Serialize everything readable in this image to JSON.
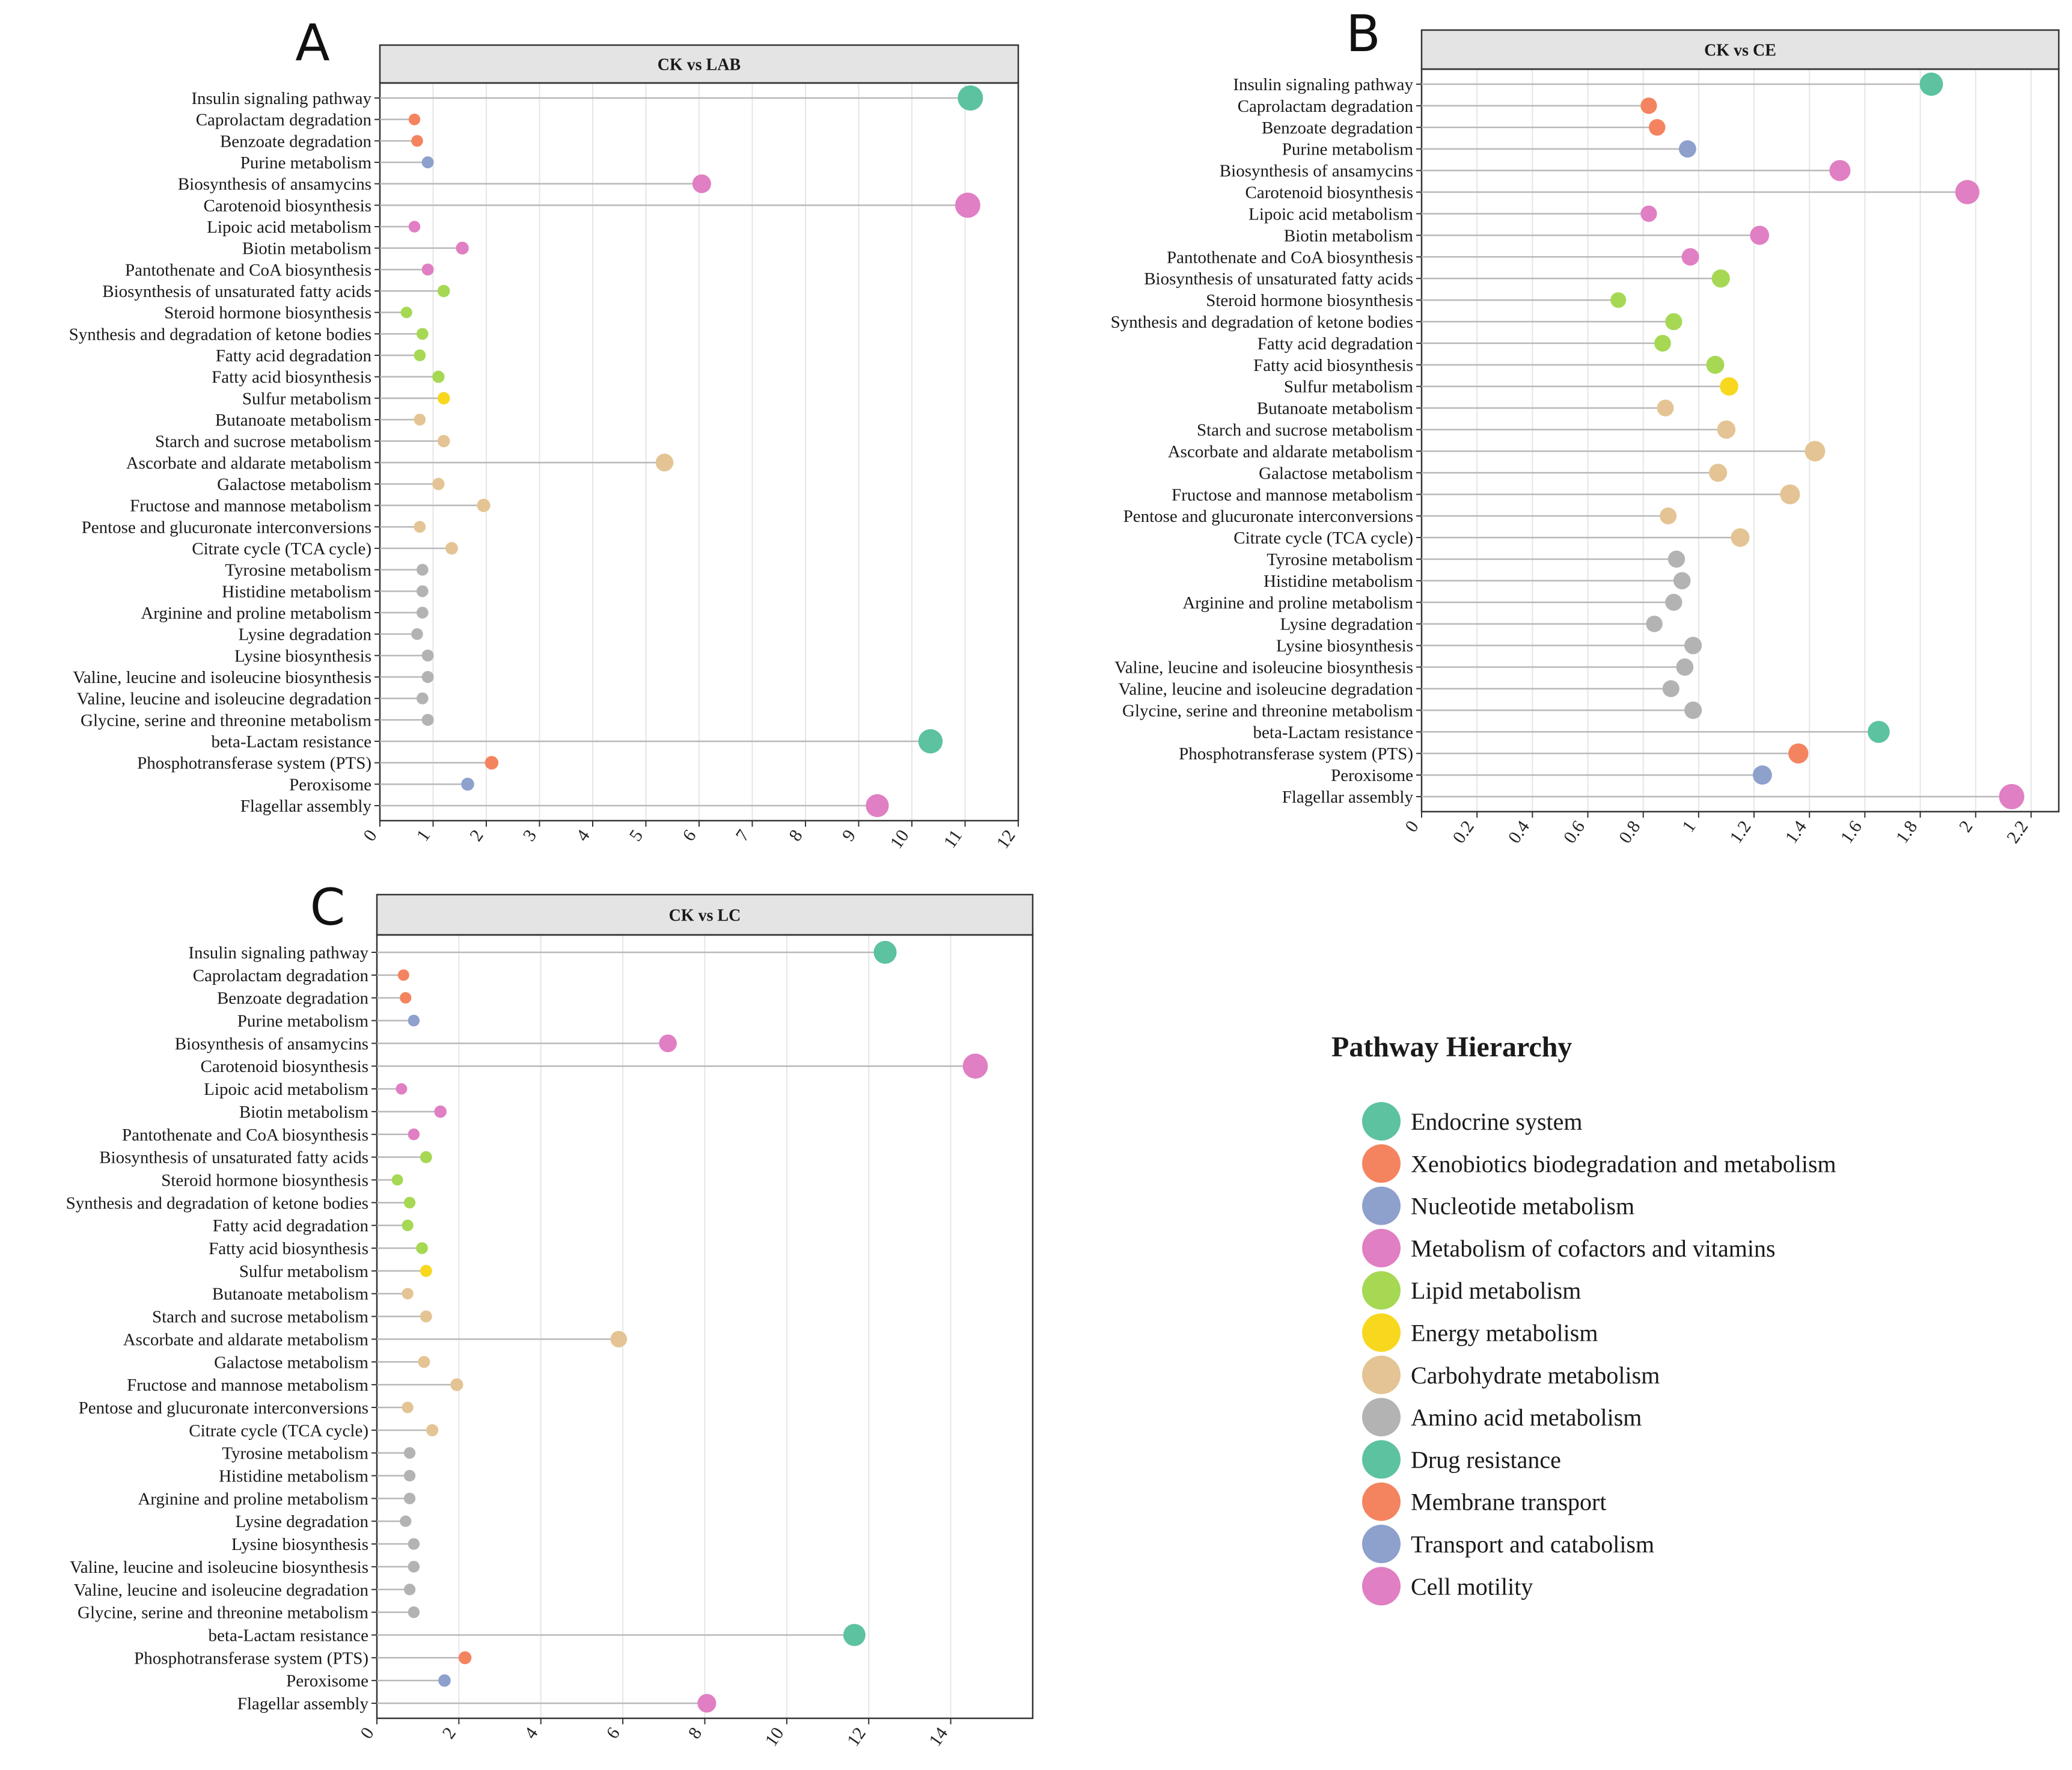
{
  "categories": {
    "Endocrine system": "#5cc2a0",
    "Xenobiotics biodegradation and metabolism": "#f4845f",
    "Nucleotide metabolism": "#8ea0cc",
    "Metabolism of cofactors and vitamins": "#e07fc3",
    "Lipid metabolism": "#a6d854",
    "Energy metabolism": "#f7d81e",
    "Carbohydrate metabolism": "#e4c494",
    "Amino acid metabolism": "#b3b3b3",
    "Drug resistance": "#5cc2a0",
    "Membrane transport": "#f4845f",
    "Transport and catabolism": "#8ea0cc",
    "Cell motility": "#e07fc3"
  },
  "pathway_categories": [
    "Endocrine system",
    "Xenobiotics biodegradation and metabolism",
    "Xenobiotics biodegradation and metabolism",
    "Nucleotide metabolism",
    "Metabolism of cofactors and vitamins",
    "Metabolism of cofactors and vitamins",
    "Metabolism of cofactors and vitamins",
    "Metabolism of cofactors and vitamins",
    "Metabolism of cofactors and vitamins",
    "Lipid metabolism",
    "Lipid metabolism",
    "Lipid metabolism",
    "Lipid metabolism",
    "Lipid metabolism",
    "Energy metabolism",
    "Carbohydrate metabolism",
    "Carbohydrate metabolism",
    "Carbohydrate metabolism",
    "Carbohydrate metabolism",
    "Carbohydrate metabolism",
    "Carbohydrate metabolism",
    "Carbohydrate metabolism",
    "Amino acid metabolism",
    "Amino acid metabolism",
    "Amino acid metabolism",
    "Amino acid metabolism",
    "Amino acid metabolism",
    "Amino acid metabolism",
    "Amino acid metabolism",
    "Amino acid metabolism",
    "Drug resistance",
    "Membrane transport",
    "Transport and catabolism",
    "Cell motility"
  ],
  "legend": {
    "title": "Pathway Hierarchy",
    "items": [
      "Endocrine system",
      "Xenobiotics biodegradation and metabolism",
      "Nucleotide metabolism",
      "Metabolism of cofactors and vitamins",
      "Lipid metabolism",
      "Energy metabolism",
      "Carbohydrate metabolism",
      "Amino acid metabolism",
      "Drug resistance",
      "Membrane transport",
      "Transport and catabolism",
      "Cell motility"
    ]
  },
  "chart_data": [
    {
      "type": "lollipop",
      "panel": "A",
      "title": "CK vs LAB",
      "xlim": [
        0,
        12
      ],
      "xticks": [
        0,
        1,
        2,
        3,
        4,
        5,
        6,
        7,
        8,
        9,
        10,
        11,
        12
      ],
      "xtick_labels": [
        "0",
        "1",
        "2",
        "3",
        "4",
        "5",
        "6",
        "7",
        "8",
        "9",
        "10",
        "11",
        "12"
      ],
      "pathways": [
        "Insulin signaling pathway",
        "Caprolactam degradation",
        "Benzoate degradation",
        "Purine metabolism",
        "Biosynthesis of ansamycins",
        "Carotenoid biosynthesis",
        "Lipoic acid metabolism",
        "Biotin metabolism",
        "Pantothenate and CoA biosynthesis",
        "Biosynthesis of unsaturated fatty acids",
        "Steroid hormone biosynthesis",
        "Synthesis and degradation of ketone bodies",
        "Fatty acid degradation",
        "Fatty acid biosynthesis",
        "Sulfur metabolism",
        "Butanoate metabolism",
        "Starch and sucrose metabolism",
        "Ascorbate and aldarate metabolism",
        "Galactose metabolism",
        "Fructose and mannose metabolism",
        "Pentose and glucuronate interconversions",
        "Citrate cycle (TCA cycle)",
        "Tyrosine metabolism",
        "Histidine metabolism",
        "Arginine and proline metabolism",
        "Lysine degradation",
        "Lysine biosynthesis",
        "Valine, leucine and isoleucine biosynthesis",
        "Valine, leucine and isoleucine degradation",
        "Glycine, serine and threonine metabolism",
        "beta-Lactam resistance",
        "Phosphotransferase system (PTS)",
        "Peroxisome",
        "Flagellar assembly"
      ],
      "values": [
        11.1,
        0.65,
        0.7,
        0.9,
        6.05,
        11.05,
        0.65,
        1.55,
        0.9,
        1.2,
        0.5,
        0.8,
        0.75,
        1.1,
        1.2,
        0.75,
        1.2,
        5.35,
        1.1,
        1.95,
        0.75,
        1.35,
        0.8,
        0.8,
        0.8,
        0.7,
        0.9,
        0.9,
        0.8,
        0.9,
        10.35,
        2.1,
        1.65,
        9.35
      ]
    },
    {
      "type": "lollipop",
      "panel": "B",
      "title": "CK vs CE",
      "xlim": [
        0,
        2.3
      ],
      "xticks": [
        0,
        0.2,
        0.4,
        0.6,
        0.8,
        1,
        1.2,
        1.4,
        1.6,
        1.8,
        2,
        2.2
      ],
      "xtick_labels": [
        "0",
        "0.2",
        "0.4",
        "0.6",
        "0.8",
        "1",
        "1.2",
        "1.4",
        "1.6",
        "1.8",
        "2",
        "2.2"
      ],
      "pathways": [
        "Insulin signaling pathway",
        "Caprolactam degradation",
        "Benzoate degradation",
        "Purine metabolism",
        "Biosynthesis of ansamycins",
        "Carotenoid biosynthesis",
        "Lipoic acid metabolism",
        "Biotin metabolism",
        "Pantothenate and CoA biosynthesis",
        "Biosynthesis of unsaturated fatty acids",
        "Steroid hormone biosynthesis",
        "Synthesis and degradation of ketone bodies",
        "Fatty acid degradation",
        "Fatty acid biosynthesis",
        "Sulfur metabolism",
        "Butanoate metabolism",
        "Starch and sucrose metabolism",
        "Ascorbate and aldarate metabolism",
        "Galactose metabolism",
        "Fructose and mannose metabolism",
        "Pentose and glucuronate interconversions",
        "Citrate cycle (TCA cycle)",
        "Tyrosine metabolism",
        "Histidine metabolism",
        "Arginine and proline metabolism",
        "Lysine degradation",
        "Lysine biosynthesis",
        "Valine, leucine and isoleucine biosynthesis",
        "Valine, leucine and isoleucine degradation",
        "Glycine, serine and threonine metabolism",
        "beta-Lactam resistance",
        "Phosphotransferase system (PTS)",
        "Peroxisome",
        "Flagellar assembly"
      ],
      "values": [
        1.84,
        0.82,
        0.85,
        0.96,
        1.51,
        1.97,
        0.82,
        1.22,
        0.97,
        1.08,
        0.71,
        0.91,
        0.87,
        1.06,
        1.11,
        0.88,
        1.1,
        1.42,
        1.07,
        1.33,
        0.89,
        1.15,
        0.92,
        0.94,
        0.91,
        0.84,
        0.98,
        0.95,
        0.9,
        0.98,
        1.65,
        1.36,
        1.23,
        2.13
      ]
    },
    {
      "type": "lollipop",
      "panel": "C",
      "title": "CK vs LC",
      "xlim": [
        0,
        16
      ],
      "xticks": [
        0,
        2,
        4,
        6,
        8,
        10,
        12,
        14
      ],
      "xtick_labels": [
        "0",
        "2",
        "4",
        "6",
        "8",
        "10",
        "12",
        "14"
      ],
      "pathways": [
        "Insulin signaling pathway",
        "Caprolactam degradation",
        "Benzoate degradation",
        "Purine metabolism",
        "Biosynthesis of ansamycins",
        "Carotenoid biosynthesis",
        "Lipoic acid metabolism",
        "Biotin metabolism",
        "Pantothenate and CoA biosynthesis",
        "Biosynthesis of unsaturated fatty acids",
        "Steroid hormone biosynthesis",
        "Synthesis and degradation of ketone bodies",
        "Fatty acid degradation",
        "Fatty acid biosynthesis",
        "Sulfur metabolism",
        "Butanoate metabolism",
        "Starch and sucrose metabolism",
        "Ascorbate and aldarate metabolism",
        "Galactose metabolism",
        "Fructose and mannose metabolism",
        "Pentose and glucuronate interconversions",
        "Citrate cycle (TCA cycle)",
        "Tyrosine metabolism",
        "Histidine metabolism",
        "Arginine and proline metabolism",
        "Lysine degradation",
        "Lysine biosynthesis",
        "Valine, leucine and isoleucine biosynthesis",
        "Valine, leucine and isoleucine degradation",
        "Glycine, serine and threonine metabolism",
        "beta-Lactam resistance",
        "Phosphotransferase system (PTS)",
        "Peroxisome",
        "Flagellar assembly"
      ],
      "values": [
        12.4,
        0.65,
        0.7,
        0.9,
        7.1,
        14.6,
        0.6,
        1.55,
        0.9,
        1.2,
        0.5,
        0.8,
        0.75,
        1.1,
        1.2,
        0.75,
        1.2,
        5.9,
        1.15,
        1.95,
        0.75,
        1.35,
        0.8,
        0.8,
        0.8,
        0.7,
        0.9,
        0.9,
        0.8,
        0.9,
        11.65,
        2.15,
        1.65,
        8.05
      ]
    }
  ]
}
